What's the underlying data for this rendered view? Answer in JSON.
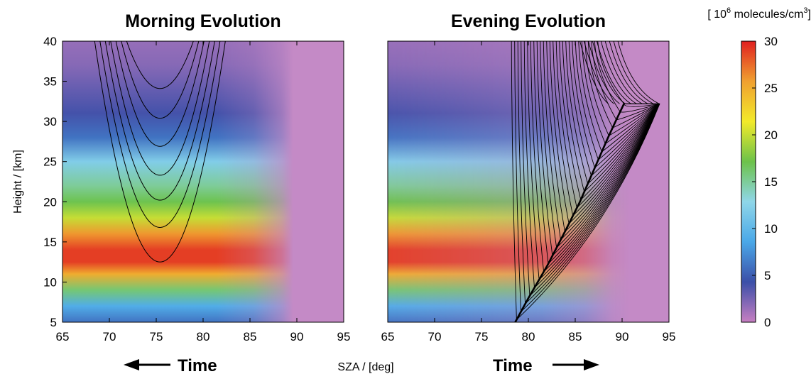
{
  "chart_data": [
    {
      "type": "heatmap",
      "title": "Morning Evolution",
      "xlabel": "SZA / [deg]",
      "ylabel": "Height / [km]",
      "xlim": [
        65,
        95
      ],
      "ylim": [
        5,
        40
      ],
      "x_ticks": [
        65,
        70,
        75,
        80,
        85,
        90,
        95
      ],
      "y_ticks": [
        5,
        10,
        15,
        20,
        25,
        30,
        35,
        40
      ],
      "time_arrow_label": "Time",
      "time_direction": "left",
      "colorbar_label_base": "[ 10",
      "colorbar_label_exp": "6",
      "colorbar_label_unit": " molecules/cm",
      "colorbar_label_unit_exp": "3",
      "colorbar_label_end": "]",
      "colorbar_ticks": [
        0,
        5,
        10,
        15,
        20,
        25,
        30
      ],
      "colorbar_range": [
        0,
        30
      ],
      "colorscale": [
        "#c77fc2",
        "#3b4fa8",
        "#4aa8e8",
        "#8fd6e8",
        "#6cc24a",
        "#f2ea2a",
        "#f0a030",
        "#e02020"
      ],
      "density_profile": {
        "heights_km": [
          5,
          7,
          9,
          11,
          12.5,
          14,
          16,
          18,
          20,
          22,
          25,
          28,
          31,
          34,
          37,
          40
        ],
        "values": [
          6,
          9,
          16,
          25,
          29,
          29,
          26,
          20,
          17,
          15,
          12,
          6,
          4,
          3,
          2,
          1.5
        ]
      },
      "trajectory_minima_km": [
        12.5,
        16.8,
        20.2,
        23.3,
        26.9,
        30.4,
        34.1
      ]
    },
    {
      "type": "heatmap",
      "title": "Evening Evolution",
      "xlim": [
        65,
        95
      ],
      "ylim": [
        5,
        40
      ],
      "x_ticks": [
        65,
        70,
        75,
        80,
        85,
        90,
        95
      ],
      "y_ticks": [
        5,
        10,
        15,
        20,
        25,
        30,
        35,
        40
      ],
      "time_arrow_label": "Time",
      "time_direction": "right",
      "terminator_curve": {
        "sza": [
          78.6,
          80,
          82,
          84,
          85.5,
          87,
          88.5,
          89.5,
          90.2
        ],
        "height_km": [
          5,
          8,
          12,
          16.5,
          20,
          24,
          28,
          30.5,
          32.2
        ]
      }
    }
  ]
}
